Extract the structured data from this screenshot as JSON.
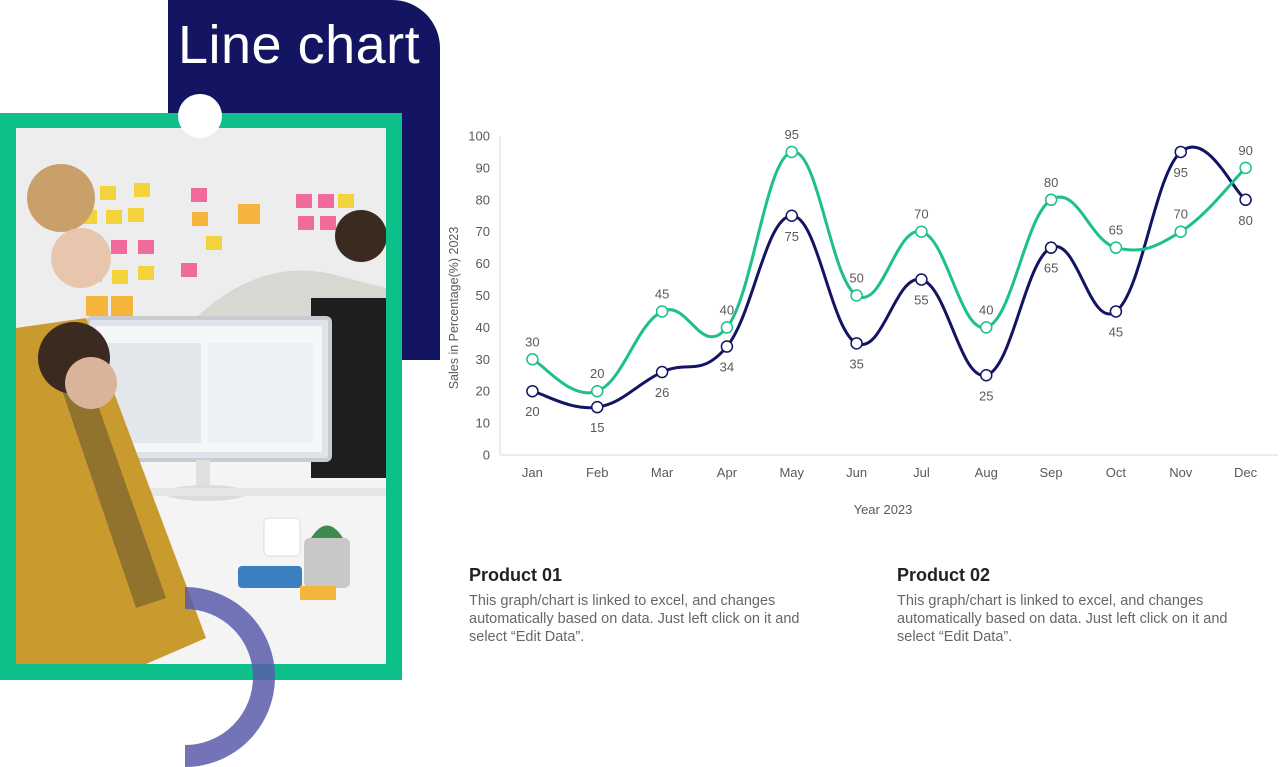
{
  "slide": {
    "title": "Line chart",
    "photo_alt": "team reviewing charts on monitor",
    "colors": {
      "navy": "#131462",
      "green": "#0dbf88"
    }
  },
  "chart_data": {
    "type": "line",
    "title": "",
    "xlabel": "Year 2023",
    "ylabel": "Sales in Percentage(%) 2023",
    "ylim": [
      0,
      100
    ],
    "yticks": [
      0,
      10,
      20,
      30,
      40,
      50,
      60,
      70,
      80,
      90,
      100
    ],
    "grid": false,
    "categories": [
      "Jan",
      "Feb",
      "Mar",
      "Apr",
      "May",
      "Jun",
      "Jul",
      "Aug",
      "Sep",
      "Oct",
      "Nov",
      "Dec"
    ],
    "series": [
      {
        "color": "#131462",
        "values": [
          20,
          15,
          26,
          34,
          75,
          35,
          55,
          25,
          65,
          45,
          95,
          80
        ]
      },
      {
        "color": "#1dbf8e",
        "values": [
          30,
          20,
          45,
          40,
          95,
          50,
          70,
          40,
          80,
          65,
          70,
          90
        ]
      }
    ]
  },
  "products": [
    {
      "name": "Product 01",
      "desc": "This graph/chart is linked to excel, and changes automatically based on data. Just left click on it and select “Edit Data”."
    },
    {
      "name": "Product 02",
      "desc": "This graph/chart is linked to excel, and changes automatically based on data. Just left click on it and select “Edit Data”."
    }
  ]
}
